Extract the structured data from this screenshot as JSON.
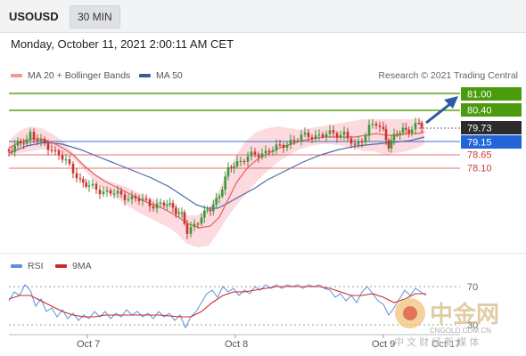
{
  "header": {
    "symbol": "USOUSD",
    "timeframe": "30 MIN",
    "datetime": "Monday, October 11, 2021 2:00:11 AM CET"
  },
  "legend": {
    "ma20_label": "MA 20 + Bollinger Bands",
    "ma50_label": "MA 50",
    "copyright": "Research © 2021 Trading Central",
    "rsi_label": "RSI",
    "ma9_label": "9MA"
  },
  "colors": {
    "ma20": "#e86060",
    "bollinger_fill": "#fbd0d6",
    "ma50": "#4b6aa8",
    "resistance": "#4c9a0e",
    "pivot": "#2166d8",
    "support": "#e06060",
    "current": "#2b2b2b",
    "rsi": "#5b8fe0",
    "ma9": "#cc2a2a"
  },
  "levels": [
    {
      "value": "81.00",
      "type": "resistance"
    },
    {
      "value": "80.40",
      "type": "resistance"
    },
    {
      "value": "79.73",
      "type": "current"
    },
    {
      "value": "79.15",
      "type": "pivot"
    },
    {
      "value": "78.65",
      "type": "support"
    },
    {
      "value": "78.10",
      "type": "support"
    }
  ],
  "rsi_levels": [
    "70",
    "30"
  ],
  "x_axis": [
    "Oct 7",
    "Oct 8",
    "Oct 9",
    "Oct 17"
  ],
  "watermark": {
    "name": "中金网",
    "domain": "CNGOLD.COM.CN",
    "tagline": "中 文 财 经 新 媒 体"
  }
}
